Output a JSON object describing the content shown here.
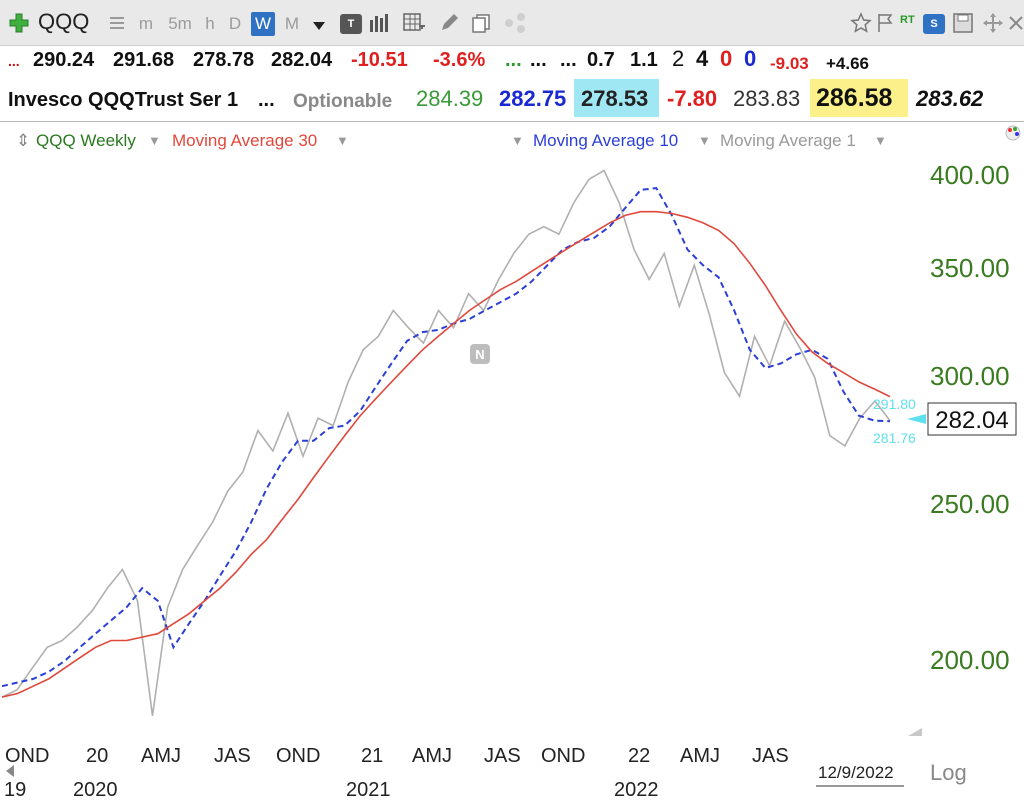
{
  "toolbar": {
    "ticker": "QQQ",
    "timeframes": [
      "m",
      "5m",
      "h",
      "D",
      "W",
      "M"
    ],
    "active_timeframe": "W",
    "tools": [
      "add-icon",
      "list-icon",
      "dropdown-icon",
      "text-type-icon",
      "bar-chart-icon",
      "calc-table-icon",
      "pencil-icon",
      "copy-icon",
      "share-icon",
      "star-icon",
      "flag-icon",
      "realtime-icon",
      "s-link-icon",
      "save-icon",
      "move-icon",
      "close-icon"
    ],
    "rt_label": "RT",
    "s_label": "S",
    "tt_label": "T"
  },
  "quote": {
    "marker1": "...",
    "open": "290.24",
    "high": "291.68",
    "low": "278.78",
    "close": "282.04",
    "change": "-10.51",
    "change_pct": "-3.6%",
    "dots1": "...",
    "dots2": "...",
    "dots3": "...",
    "v1": "0.7",
    "v2": "1.1",
    "c2": "2",
    "c4": "4",
    "c0a": "0",
    "c0b": "0",
    "neg": "-9.03",
    "pos": "+4.66",
    "name": "Invesco QQQTrust Ser 1",
    "dots4": "...",
    "optionable": "Optionable",
    "p1": "284.39",
    "p2": "282.75",
    "p3": "278.53",
    "p4": "-7.80",
    "p5": "283.83",
    "p6": "286.58",
    "p7": "283.62"
  },
  "legend": {
    "series_label": "QQQ Weekly",
    "ma30_label": "Moving Average 30",
    "ma10_label": "Moving Average 10",
    "ma1_label": "Moving Average 1"
  },
  "colors": {
    "series": "#1f8a1f",
    "ma30": "#e0483c",
    "ma10": "#2b3fd6",
    "ma1": "#b0b0b0",
    "axis": "#3a7a20",
    "label_cyan": "#5fe0ef"
  },
  "chart_data": {
    "type": "line",
    "title": "",
    "yscale": "log",
    "ylim": [
      180,
      415
    ],
    "yticks": [
      "400.00",
      "350.00",
      "300.00",
      "250.00",
      "200.00"
    ],
    "ytick_values": [
      400,
      350,
      300,
      250,
      200
    ],
    "x_ticks_top": [
      "OND",
      "20",
      "AMJ",
      "JAS",
      "OND",
      "21",
      "AMJ",
      "JAS",
      "OND",
      "22",
      "AMJ",
      "JAS"
    ],
    "x_ticks_bottom": [
      "19",
      "2020",
      "2021",
      "2022"
    ],
    "date_label": "12/9/2022",
    "log_label": "Log",
    "last_price": "282.04",
    "ma30_value": "291.80",
    "ma10_value": "281.76",
    "n_marker": "N",
    "series": [
      {
        "name": "Moving Average 1",
        "values": [
          190,
          192,
          198,
          204,
          206,
          210,
          215,
          222,
          228,
          218,
          185,
          216,
          228,
          236,
          244,
          255,
          262,
          278,
          270,
          285,
          268,
          283,
          280,
          298,
          312,
          318,
          330,
          322,
          315,
          330,
          322,
          338,
          330,
          345,
          358,
          368,
          372,
          368,
          385,
          398,
          403,
          385,
          360,
          345,
          358,
          332,
          352,
          328,
          302,
          292,
          318,
          305,
          325,
          313,
          300,
          276,
          272,
          283,
          290,
          282
        ]
      },
      {
        "name": "Moving Average 10",
        "values": [
          193,
          194,
          195,
          197,
          200,
          204,
          208,
          212,
          216,
          222,
          218,
          204,
          211,
          218,
          226,
          234,
          244,
          256,
          266,
          274,
          274,
          279,
          280,
          286,
          296,
          306,
          316,
          320,
          321,
          324,
          326,
          330,
          334,
          338,
          344,
          352,
          360,
          364,
          366,
          372,
          382,
          392,
          393,
          378,
          360,
          352,
          346,
          330,
          312,
          304,
          306,
          310,
          312,
          308,
          294,
          284,
          282,
          281.76
        ]
      },
      {
        "name": "Moving Average 30",
        "values": [
          190,
          191,
          193,
          195,
          198,
          201,
          204,
          206,
          206,
          207,
          208,
          211,
          214,
          218,
          222,
          227,
          233,
          238,
          245,
          252,
          260,
          268,
          276,
          284,
          291,
          298,
          305,
          312,
          318,
          324,
          330,
          335,
          340,
          344,
          349,
          354,
          359,
          364,
          369,
          374,
          378,
          380,
          380,
          379,
          377,
          374,
          370,
          363,
          353,
          342,
          330,
          319,
          311,
          306,
          302,
          298,
          295,
          291.8
        ]
      }
    ]
  }
}
